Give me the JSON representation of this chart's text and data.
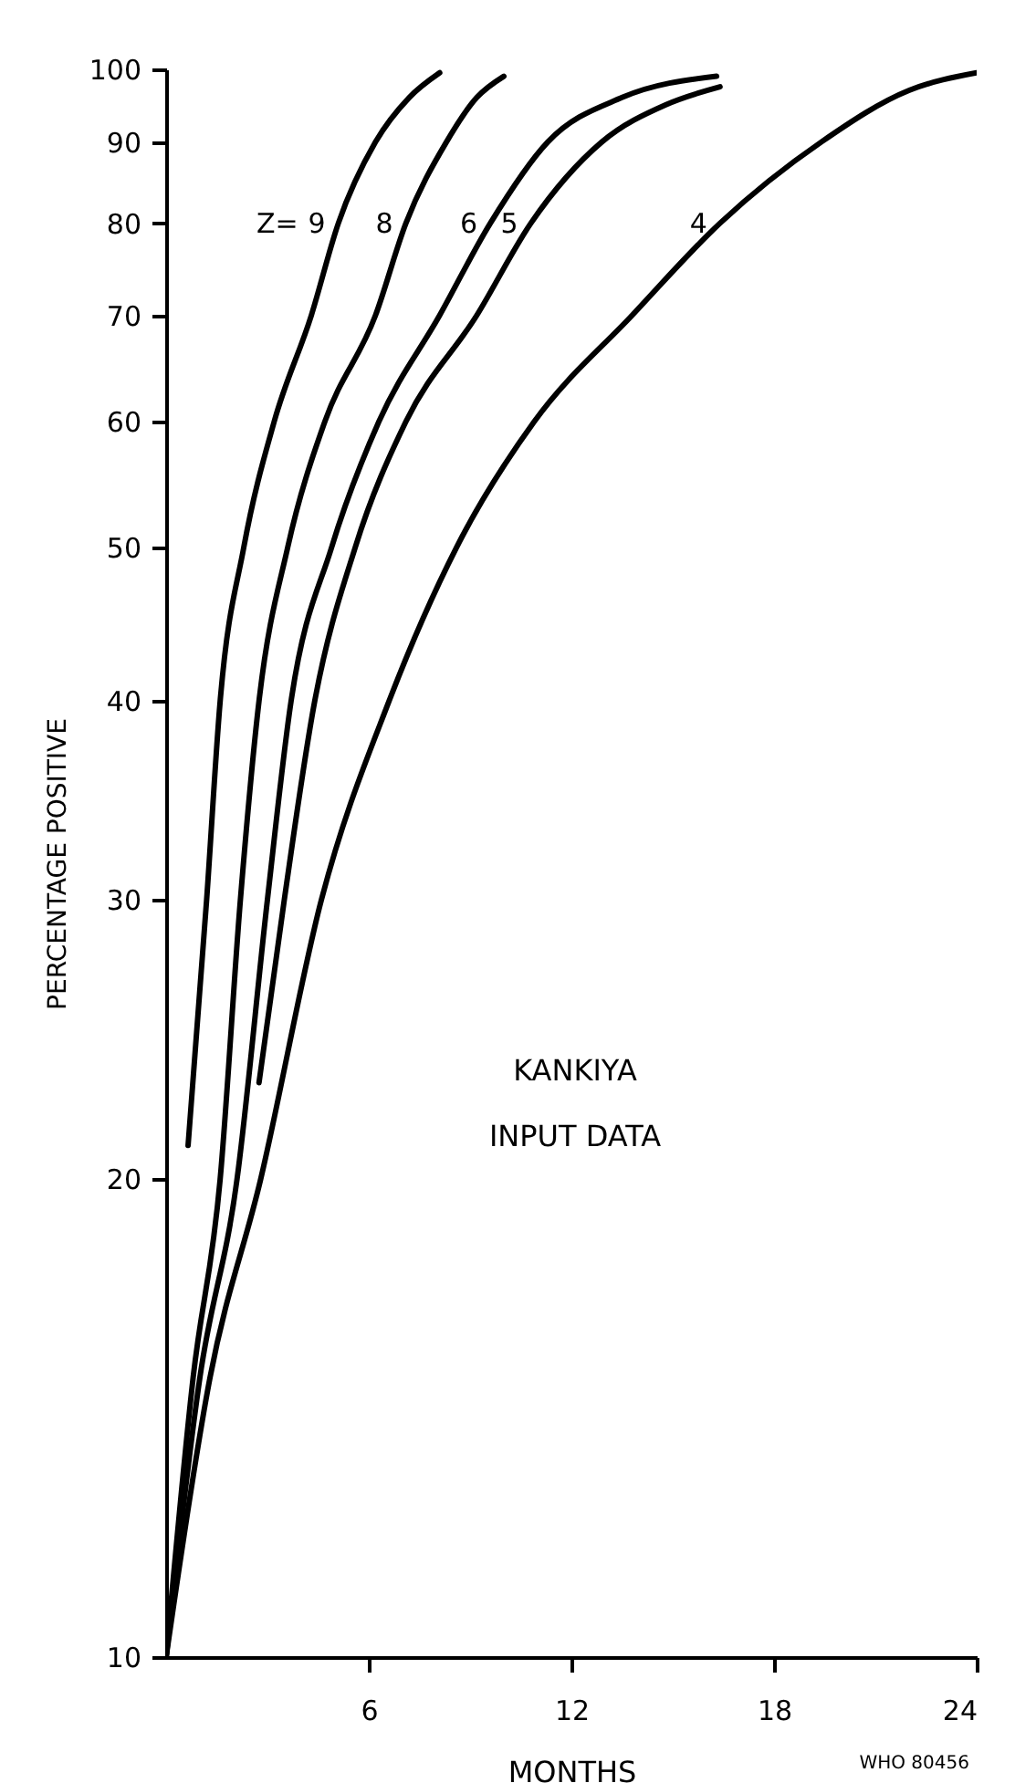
{
  "chart_data": {
    "type": "line",
    "xlabel": "MONTHS",
    "ylabel": "PERCENTAGE POSITIVE",
    "log": "y",
    "grid": false,
    "line_style": "solid",
    "marker": "none",
    "xlim": [
      0,
      24
    ],
    "xticks": [
      6,
      12,
      18,
      24
    ],
    "ylim": [
      10,
      100
    ],
    "yticks": [
      10,
      20,
      30,
      40,
      50,
      60,
      70,
      80,
      90,
      100
    ],
    "series": [
      {
        "name": "9",
        "color": "#000000",
        "x": [
          0.65,
          1.2,
          1.6,
          2.3,
          3.2,
          4.3,
          5.1,
          6.2,
          7.2,
          8.1
        ],
        "values": [
          21,
          30,
          40,
          50,
          60,
          70,
          80,
          90,
          96,
          99.5
        ]
      },
      {
        "name": "8",
        "color": "#000000",
        "x": [
          0,
          0.8,
          1.6,
          2.2,
          2.75,
          3.6,
          4.7,
          6.2,
          7.1,
          8.3,
          9.2,
          10
        ],
        "values": [
          10,
          15,
          20,
          30,
          40,
          50,
          60,
          70,
          80,
          90,
          96,
          99
        ]
      },
      {
        "name": "6",
        "color": "#000000",
        "x": [
          0,
          1,
          2.1,
          3.0,
          3.7,
          4.9,
          6.3,
          8.1,
          9.6,
          11.3,
          13.5,
          16.3
        ],
        "values": [
          10,
          15,
          20,
          30,
          40,
          50,
          60,
          70,
          80,
          90,
          96,
          99
        ]
      },
      {
        "name": "5",
        "color": "#000000",
        "x": [
          2.75,
          3.5,
          4.4,
          5.6,
          7.1,
          9.2,
          10.8,
          12.9,
          14.8,
          16.4
        ],
        "values": [
          23,
          30,
          40,
          50,
          60,
          70,
          80,
          90,
          95,
          97.5
        ]
      },
      {
        "name": "4",
        "color": "#000000",
        "x": [
          0,
          1.3,
          2.8,
          4.6,
          6.6,
          8.6,
          10.9,
          13.8,
          16.4,
          19.4,
          22,
          24
        ],
        "values": [
          10,
          15,
          20,
          30,
          40,
          50,
          60,
          70,
          80,
          90,
          97,
          99.5
        ]
      }
    ],
    "annotations": [
      "Z=",
      "KANKIYA",
      "INPUT DATA",
      "WHO 80456"
    ]
  }
}
